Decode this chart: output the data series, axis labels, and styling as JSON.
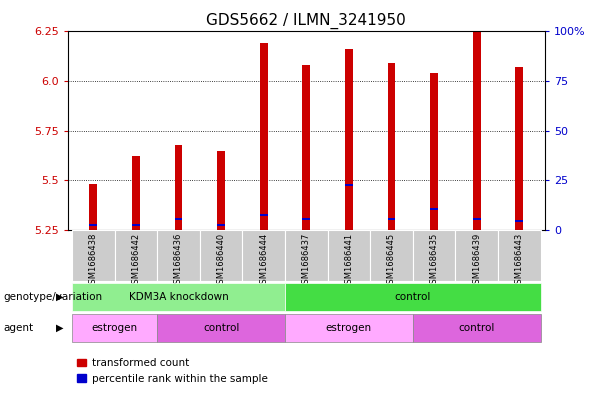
{
  "title": "GDS5662 / ILMN_3241950",
  "samples": [
    "GSM1686438",
    "GSM1686442",
    "GSM1686436",
    "GSM1686440",
    "GSM1686444",
    "GSM1686437",
    "GSM1686441",
    "GSM1686445",
    "GSM1686435",
    "GSM1686439",
    "GSM1686443"
  ],
  "red_values": [
    5.48,
    5.62,
    5.68,
    5.65,
    6.19,
    6.08,
    6.16,
    6.09,
    6.04,
    6.25,
    6.07
  ],
  "blue_pct": [
    2,
    2,
    5,
    2,
    7,
    5,
    22,
    5,
    10,
    5,
    4
  ],
  "ymin": 5.25,
  "ymax": 6.25,
  "yticks": [
    5.25,
    5.5,
    5.75,
    6.0,
    6.25
  ],
  "right_yticks": [
    0,
    25,
    50,
    75,
    100
  ],
  "right_yticklabels": [
    "0",
    "25",
    "50",
    "75",
    "100%"
  ],
  "bar_color_red": "#cc0000",
  "bar_color_blue": "#0000cc",
  "bar_width": 0.18,
  "genotype_groups": [
    {
      "label": "KDM3A knockdown",
      "start": 0,
      "end": 5,
      "color": "#90ee90"
    },
    {
      "label": "control",
      "start": 5,
      "end": 11,
      "color": "#44dd44"
    }
  ],
  "agent_groups": [
    {
      "label": "estrogen",
      "start": 0,
      "end": 2,
      "color": "#ffaaff"
    },
    {
      "label": "control",
      "start": 2,
      "end": 5,
      "color": "#dd66dd"
    },
    {
      "label": "estrogen",
      "start": 5,
      "end": 8,
      "color": "#ffaaff"
    },
    {
      "label": "control",
      "start": 8,
      "end": 11,
      "color": "#dd66dd"
    }
  ],
  "legend_red_label": "transformed count",
  "legend_blue_label": "percentile rank within the sample",
  "genotype_label": "genotype/variation",
  "agent_label": "agent",
  "left_tick_color": "#cc0000",
  "right_tick_color": "#0000cc",
  "title_fontsize": 11,
  "tick_fontsize": 8,
  "label_fontsize": 8,
  "background_color": "#ffffff",
  "plot_bg_color": "#ffffff",
  "sample_bg_color": "#cccccc",
  "geno_label_color": "#000000",
  "agent_label_color": "#000000"
}
